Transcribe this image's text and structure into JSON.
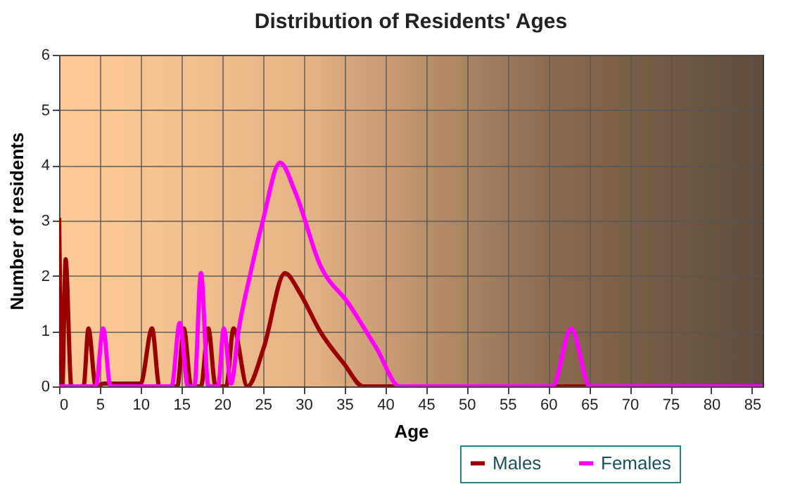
{
  "chart_data": {
    "type": "line",
    "title": "Distribution of Residents' Ages",
    "xlabel": "Age",
    "ylabel": "Number of residents",
    "xlim": [
      0,
      86.3
    ],
    "xticks": [
      0,
      5,
      10,
      15,
      20,
      25,
      30,
      35,
      40,
      45,
      50,
      55,
      60,
      65,
      70,
      75,
      80,
      85
    ],
    "ylim": [
      0,
      6
    ],
    "yticks": [
      0,
      1,
      2,
      3,
      4,
      5,
      6
    ],
    "grid": true,
    "legend": "bottom right",
    "series": [
      {
        "name": "Males",
        "color": "#990000",
        "x": [
          0,
          0.4,
          0.8,
          1.5,
          3,
          3.6,
          4.5,
          5.5,
          10,
          11.4,
          12.3,
          14.5,
          15.3,
          16.2,
          17.4,
          18.3,
          19.2,
          20.5,
          21.4,
          23.1,
          25.1,
          27.7,
          29.5,
          32,
          35,
          37.3,
          86.3
        ],
        "values": [
          3.05,
          0,
          2.3,
          0,
          0,
          1.05,
          0,
          0.05,
          0.05,
          1.05,
          0,
          0,
          1.05,
          0,
          0,
          1.05,
          0,
          0,
          1.05,
          0,
          0.7,
          2.05,
          1.7,
          1.0,
          0.4,
          0,
          0
        ]
      },
      {
        "name": "Females",
        "color": "#ff00ff",
        "x": [
          0,
          4.5,
          5.4,
          6.3,
          13.8,
          14.8,
          15.8,
          16.6,
          17.4,
          18.3,
          19.5,
          20.2,
          21.1,
          22,
          23.4,
          25,
          27.1,
          29,
          32,
          35.5,
          38.9,
          41.8,
          60.5,
          62.8,
          65.1,
          86.3
        ],
        "values": [
          0,
          0,
          1.05,
          0,
          0,
          1.15,
          0,
          0,
          2.05,
          0,
          0,
          1.05,
          0.05,
          1.0,
          2.0,
          3.0,
          4.05,
          3.5,
          2.2,
          1.5,
          0.7,
          0,
          0,
          1.05,
          0,
          0
        ]
      }
    ]
  }
}
